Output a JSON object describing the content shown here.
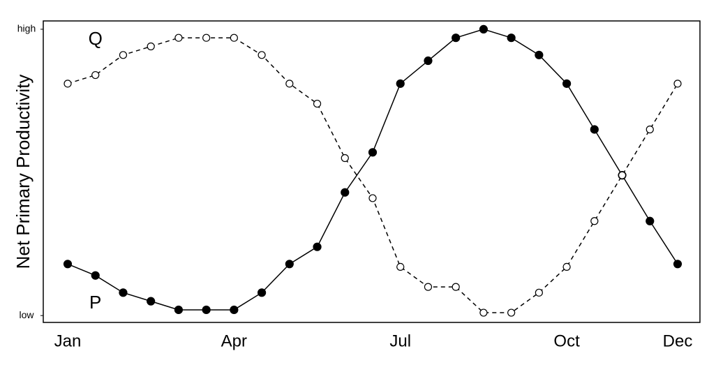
{
  "chart_data": {
    "type": "line",
    "y_label": "Net Primary Productivity",
    "categories": [
      "Jan",
      null,
      null,
      null,
      null,
      null,
      "Apr",
      null,
      null,
      null,
      null,
      null,
      "Jul",
      null,
      null,
      null,
      null,
      null,
      "Oct",
      null,
      null,
      null,
      "Dec"
    ],
    "series": [
      {
        "name": "P",
        "color": "#000000",
        "line_style": "solid",
        "marker_fill": "filled",
        "values": [
          18,
          14,
          8,
          5,
          2,
          2,
          2,
          8,
          18,
          24,
          43,
          57,
          81,
          89,
          97,
          100,
          97,
          91,
          81,
          65,
          49,
          33,
          18
        ]
      },
      {
        "name": "Q",
        "color": "#000000",
        "line_style": "dashed",
        "marker_fill": "open",
        "values": [
          81,
          84,
          91,
          94,
          97,
          97,
          97,
          91,
          81,
          74,
          55,
          41,
          17,
          10,
          10,
          1,
          1,
          8,
          17,
          33,
          49,
          65,
          81
        ]
      }
    ],
    "ylim": [
      -2.4,
      102.9
    ],
    "yticks": [
      {
        "value": 0,
        "label": "low"
      },
      {
        "value": 100,
        "label": "high"
      }
    ],
    "grid": false
  }
}
